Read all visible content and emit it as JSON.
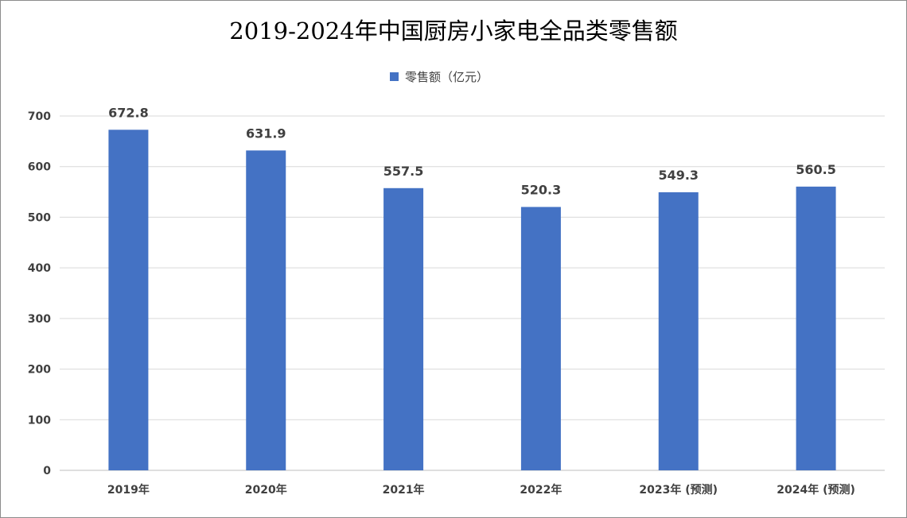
{
  "chart_data": {
    "type": "bar",
    "title": "2019-2024年中国厨房小家电全品类零售额",
    "legend": {
      "label": "零售额（亿元）",
      "position": "top"
    },
    "categories": [
      "2019年",
      "2020年",
      "2021年",
      "2022年",
      "2023年 (预测)",
      "2024年 (预测)"
    ],
    "values": [
      672.8,
      631.9,
      557.5,
      520.3,
      549.3,
      560.5
    ],
    "value_labels": [
      "672.8",
      "631.9",
      "557.5",
      "520.3",
      "549.3",
      "560.5"
    ],
    "ylim": [
      0,
      700
    ],
    "yticks": [
      "0",
      "100",
      "200",
      "300",
      "400",
      "500",
      "600",
      "700"
    ],
    "grid": true,
    "bar_color": "#4472C4",
    "xlabel": "",
    "ylabel": ""
  }
}
